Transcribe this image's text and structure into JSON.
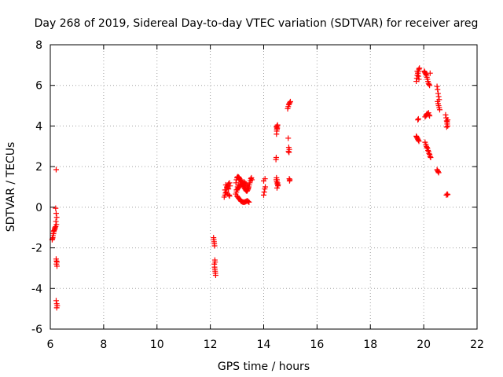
{
  "chart_data": {
    "type": "scatter",
    "title": "Day 268 of 2019, Sidereal Day-to-day VTEC variation (SDTVAR) for receiver areg",
    "xlabel": "GPS time / hours",
    "ylabel": "SDTVAR / TECUs",
    "xlim": [
      6,
      22
    ],
    "ylim": [
      -6,
      8
    ],
    "xticks": [
      6,
      8,
      10,
      12,
      14,
      16,
      18,
      20,
      22
    ],
    "yticks": [
      -6,
      -4,
      -2,
      0,
      2,
      4,
      6,
      8
    ],
    "xtick_labels": [
      "6",
      "8",
      "10",
      "12",
      "14",
      "16",
      "18",
      "20",
      "22"
    ],
    "ytick_labels": [
      "-6",
      "-4",
      "-2",
      "0",
      "2",
      "4",
      "6",
      "8"
    ],
    "grid": true,
    "marker": "+",
    "color": "#ff0000",
    "series": [
      {
        "name": "SDTVAR",
        "x": [
          6.22,
          6.2,
          6.18,
          6.17,
          6.16,
          6.14,
          6.13,
          6.12,
          6.1,
          6.09,
          6.08,
          6.07,
          6.2,
          6.22,
          6.24,
          6.21,
          6.23,
          6.22,
          6.25,
          6.23,
          6.25,
          6.22,
          6.24,
          6.26,
          6.24,
          6.23,
          12.12,
          12.13,
          12.14,
          12.15,
          12.16,
          12.17,
          12.18,
          12.15,
          12.16,
          12.17,
          12.18,
          12.19,
          12.2,
          12.52,
          12.55,
          12.57,
          12.6,
          12.62,
          12.65,
          12.68,
          12.7,
          12.72,
          12.58,
          12.62,
          12.55,
          12.6,
          12.65,
          12.68,
          12.72,
          12.74,
          12.96,
          12.98,
          13.0,
          13.02,
          13.04,
          13.06,
          13.08,
          13.1,
          13.12,
          13.14,
          13.16,
          13.18,
          13.2,
          13.22,
          13.24,
          13.26,
          13.28,
          13.3,
          13.32,
          13.35,
          13.38,
          13.4,
          13.42,
          13.44,
          13.46,
          13.48,
          13.5,
          13.52,
          13.54,
          13.56,
          13.0,
          13.03,
          13.06,
          13.09,
          13.12,
          13.15,
          13.18,
          13.21,
          13.24,
          13.27,
          13.3,
          13.33,
          13.36,
          13.39,
          13.42,
          13.45,
          12.98,
          13.02,
          13.05,
          13.08,
          13.1,
          13.14,
          13.18,
          13.22,
          13.26,
          13.3,
          13.34,
          13.38,
          13.42,
          12.95,
          12.98,
          13.0,
          13.02,
          13.05,
          14.0,
          14.02,
          14.04,
          14.06,
          14.0,
          14.05,
          14.46,
          14.47,
          14.48,
          14.49,
          14.5,
          14.48,
          14.5,
          14.52,
          14.47,
          14.49,
          14.51,
          14.53,
          14.5,
          14.48,
          14.5,
          14.52,
          14.54,
          14.49,
          14.51,
          14.9,
          14.92,
          14.94,
          14.96,
          14.98,
          15.0,
          14.92,
          14.94,
          14.96,
          14.93,
          14.95,
          14.96,
          14.98,
          14.97,
          19.72,
          19.74,
          19.76,
          19.78,
          19.8,
          19.82,
          19.84,
          19.76,
          19.78,
          19.8,
          19.82,
          19.78,
          19.8,
          19.72,
          19.74,
          19.76,
          19.78,
          19.8,
          19.82,
          20.02,
          20.04,
          20.06,
          20.08,
          20.1,
          20.12,
          20.14,
          20.16,
          20.18,
          20.2,
          20.22,
          20.24,
          20.05,
          20.08,
          20.1,
          20.12,
          20.15,
          20.18,
          20.2,
          20.22,
          20.05,
          20.08,
          20.1,
          20.12,
          20.14,
          20.16,
          20.18,
          20.2,
          20.22,
          20.24,
          20.26,
          20.5,
          20.52,
          20.54,
          20.56,
          20.58,
          20.52,
          20.54,
          20.56,
          20.58,
          20.6,
          20.5,
          20.52,
          20.54,
          20.56,
          20.82,
          20.84,
          20.86,
          20.88,
          20.9,
          20.86,
          20.88,
          20.9,
          20.85,
          20.88,
          20.9
        ],
        "y": [
          1.85,
          -0.95,
          -1.0,
          -1.05,
          -1.1,
          -1.15,
          -1.2,
          -1.3,
          -1.4,
          -1.5,
          -1.55,
          -1.6,
          -0.05,
          -0.3,
          -0.5,
          -0.7,
          -0.85,
          -2.55,
          -2.7,
          -2.8,
          -2.9,
          -4.6,
          -4.75,
          -4.85,
          -4.95,
          -2.65,
          -1.5,
          -1.6,
          -1.7,
          -1.8,
          -1.9,
          -2.6,
          -2.7,
          -2.8,
          -2.95,
          -3.05,
          -3.15,
          -3.25,
          -3.35,
          0.5,
          0.6,
          0.7,
          0.85,
          0.95,
          1.05,
          1.15,
          0.6,
          0.55,
          1.1,
          1.0,
          0.85,
          0.75,
          0.65,
          0.9,
          1.2,
          1.05,
          1.2,
          1.35,
          1.45,
          1.5,
          1.5,
          1.48,
          1.45,
          1.4,
          1.35,
          1.3,
          1.25,
          1.2,
          1.15,
          1.1,
          1.05,
          1.0,
          0.95,
          0.9,
          0.85,
          0.8,
          0.8,
          0.85,
          0.9,
          1.0,
          1.1,
          1.2,
          1.3,
          1.4,
          1.45,
          1.35,
          0.55,
          0.5,
          0.45,
          0.4,
          0.35,
          0.3,
          0.28,
          0.26,
          0.25,
          0.25,
          0.26,
          0.28,
          0.3,
          0.32,
          0.28,
          0.25,
          0.85,
          0.9,
          0.95,
          1.0,
          1.05,
          1.1,
          1.15,
          1.2,
          1.25,
          1.2,
          1.15,
          1.05,
          0.95,
          0.65,
          0.75,
          0.85,
          1.0,
          1.1,
          0.6,
          0.75,
          0.9,
          1.0,
          1.3,
          1.4,
          2.35,
          2.45,
          3.6,
          3.75,
          3.85,
          3.95,
          4.0,
          4.05,
          1.35,
          1.25,
          1.15,
          1.05,
          0.95,
          1.45,
          1.35,
          1.2,
          1.1,
          3.85,
          3.9,
          4.85,
          4.95,
          5.05,
          5.1,
          5.15,
          5.2,
          3.4,
          2.95,
          2.85,
          2.75,
          2.7,
          1.4,
          1.35,
          1.3,
          6.2,
          6.35,
          6.5,
          6.6,
          6.7,
          6.8,
          6.85,
          6.7,
          6.6,
          6.45,
          6.3,
          4.3,
          4.35,
          3.5,
          3.45,
          3.4,
          3.35,
          3.3,
          3.25,
          6.7,
          6.65,
          6.6,
          6.55,
          6.5,
          6.4,
          6.3,
          6.2,
          6.1,
          6.05,
          6.0,
          6.6,
          4.45,
          4.5,
          4.55,
          4.6,
          4.6,
          4.65,
          4.55,
          4.5,
          3.2,
          3.1,
          3.0,
          2.95,
          2.9,
          2.8,
          2.75,
          2.65,
          2.6,
          2.5,
          2.45,
          5.95,
          5.8,
          5.6,
          5.45,
          5.3,
          5.2,
          5.1,
          5.0,
          4.9,
          4.8,
          1.85,
          1.8,
          1.75,
          1.7,
          4.55,
          4.4,
          4.25,
          4.1,
          4.0,
          3.95,
          4.2,
          4.3,
          0.6,
          0.65,
          0.62
        ]
      }
    ]
  }
}
